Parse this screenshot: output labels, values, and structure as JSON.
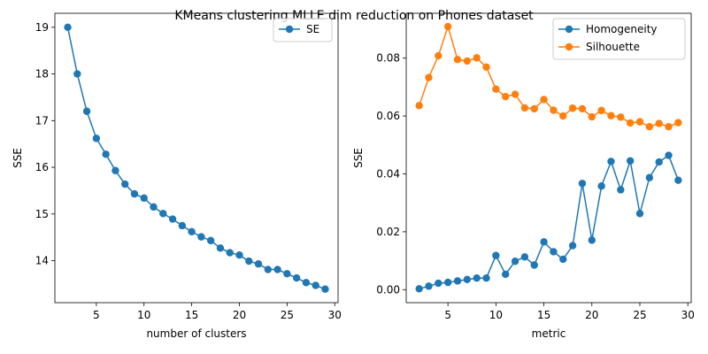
{
  "figure": {
    "title": "KMeans clustering MLLE dim reduction on Phones dataset"
  },
  "chart_data": [
    {
      "type": "line",
      "xlabel": "number of clusters",
      "ylabel": "SSE",
      "xlim": [
        0.65,
        30.35
      ],
      "ylim": [
        13.1,
        19.3
      ],
      "xticks": [
        5,
        10,
        15,
        20,
        25,
        30
      ],
      "yticks": [
        14,
        15,
        16,
        17,
        18,
        19
      ],
      "legend": "top-right",
      "x": [
        2,
        3,
        4,
        5,
        6,
        7,
        8,
        9,
        10,
        11,
        12,
        13,
        14,
        15,
        16,
        17,
        18,
        19,
        20,
        21,
        22,
        23,
        24,
        25,
        26,
        27,
        28,
        29
      ],
      "series": [
        {
          "name": "SE",
          "color": "#1f77b4",
          "values": [
            19.0,
            18.0,
            17.2,
            16.62,
            16.28,
            15.93,
            15.64,
            15.43,
            15.34,
            15.15,
            15.01,
            14.89,
            14.75,
            14.62,
            14.51,
            14.43,
            14.27,
            14.17,
            14.12,
            13.99,
            13.93,
            13.81,
            13.81,
            13.72,
            13.63,
            13.53,
            13.47,
            13.39
          ]
        }
      ]
    },
    {
      "type": "line",
      "xlabel": "metric",
      "ylabel": "SSE",
      "xlim": [
        0.65,
        30.35
      ],
      "ylim": [
        -0.0045,
        0.0955
      ],
      "xticks": [
        5,
        10,
        15,
        20,
        25,
        30
      ],
      "yticks": [
        0.0,
        0.02,
        0.04,
        0.06,
        0.08
      ],
      "yticklabels": [
        "0.00",
        "0.02",
        "0.04",
        "0.06",
        "0.08"
      ],
      "legend": "top-right",
      "x": [
        2,
        3,
        4,
        5,
        6,
        7,
        8,
        9,
        10,
        11,
        12,
        13,
        14,
        15,
        16,
        17,
        18,
        19,
        20,
        21,
        22,
        23,
        24,
        25,
        26,
        27,
        28,
        29
      ],
      "series": [
        {
          "name": "Homogeneity",
          "color": "#1f77b4",
          "values": [
            0.0003,
            0.0012,
            0.0022,
            0.0025,
            0.003,
            0.0035,
            0.004,
            0.004,
            0.0118,
            0.0053,
            0.0098,
            0.0113,
            0.0085,
            0.0165,
            0.0131,
            0.0105,
            0.0152,
            0.0367,
            0.0171,
            0.0358,
            0.0443,
            0.0345,
            0.0445,
            0.0263,
            0.0387,
            0.0441,
            0.0464,
            0.0378
          ]
        },
        {
          "name": "Silhouette",
          "color": "#ff7f0e",
          "values": [
            0.0636,
            0.0733,
            0.0808,
            0.0909,
            0.0795,
            0.079,
            0.0801,
            0.0769,
            0.0693,
            0.0667,
            0.0675,
            0.0628,
            0.0625,
            0.0657,
            0.062,
            0.06,
            0.0627,
            0.0625,
            0.0597,
            0.0619,
            0.0601,
            0.0596,
            0.0576,
            0.058,
            0.0563,
            0.0574,
            0.0563,
            0.0577
          ]
        }
      ]
    }
  ]
}
